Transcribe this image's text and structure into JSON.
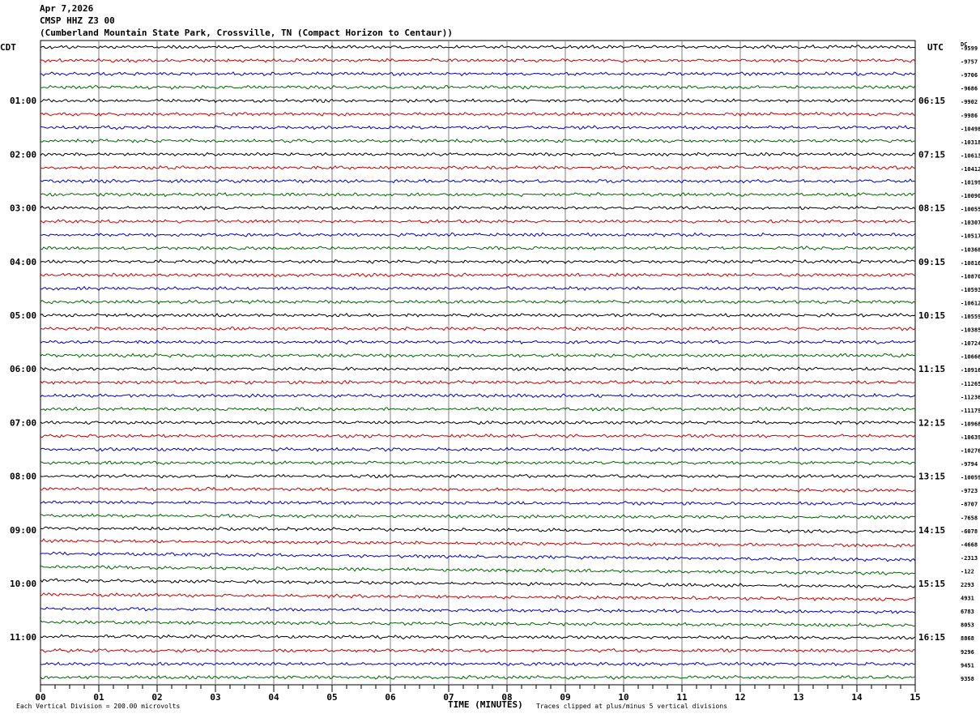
{
  "header": {
    "date": "Apr 7,2026",
    "station": "CMSP HHZ Z3 00",
    "location": "(Cumberland Mountain State Park, Crossville, TN (Compact Horizon to Centaur))"
  },
  "footer": {
    "scale_note": "Each Vertical Division =  200.00 microvolts",
    "xlabel": "TIME (MINUTES)",
    "clip_note": "Traces clipped at plus/minus 5 vertical divisions"
  },
  "chart_data": {
    "type": "line",
    "subtype": "helicorder",
    "left_timezone": "CDT",
    "right_timezone": "UTC",
    "right_header": "DC",
    "x_ticks": [
      "00",
      "01",
      "02",
      "03",
      "04",
      "05",
      "06",
      "07",
      "08",
      "09",
      "10",
      "11",
      "12",
      "13",
      "14",
      "15"
    ],
    "xlim": [
      0,
      15
    ],
    "minor_ticks_per_minute": 4,
    "rows_per_hour": 4,
    "row_count": 48,
    "trace_colors": [
      "#000000",
      "#cc0000",
      "#0000cc",
      "#006600"
    ],
    "grid": true,
    "left_hour_labels": [
      "01:00",
      "02:00",
      "03:00",
      "04:00",
      "05:00",
      "06:00",
      "07:00",
      "08:00",
      "09:00",
      "10:00",
      "11:00"
    ],
    "right_hour_labels": [
      "06:15",
      "07:15",
      "08:15",
      "09:15",
      "10:15",
      "11:15",
      "12:15",
      "13:15",
      "14:15",
      "15:15",
      "16:15"
    ],
    "dc_offsets": [
      -9599,
      -9757,
      -9706,
      -9686,
      -9902,
      -9986,
      -10498,
      -10318,
      -10613,
      -10412,
      -10199,
      -10090,
      -10055,
      -10307,
      -10517,
      -10368,
      -10816,
      -10870,
      -10593,
      -10612,
      -10559,
      -10385,
      -10724,
      -10666,
      -10916,
      -11265,
      -11236,
      -11179,
      -10968,
      -10639,
      -10276,
      -9794,
      -10059,
      -9723,
      -8707,
      -7658,
      -6078,
      -4668,
      -2313,
      -122,
      2293,
      4931,
      6783,
      8053,
      8868,
      9296,
      9451,
      9358
    ],
    "row_drift": [
      0,
      0,
      0,
      0,
      0,
      0,
      0,
      0,
      0,
      0,
      0,
      0,
      0,
      0,
      0,
      0,
      0,
      0,
      0,
      0,
      0,
      0,
      0,
      0,
      0,
      0,
      0,
      0,
      0,
      0,
      0,
      0,
      0,
      1,
      1,
      1,
      2,
      3,
      4,
      4,
      4,
      3,
      2,
      2,
      1,
      0,
      0,
      0
    ]
  }
}
